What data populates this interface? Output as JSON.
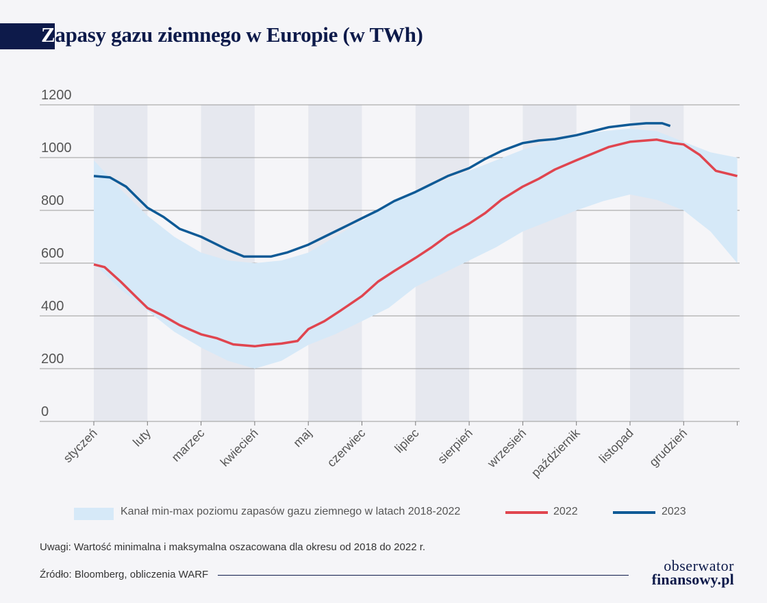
{
  "title_first_letter": "Z",
  "title_rest": "apasy gazu ziemnego w Europie (w TWh)",
  "note": "Uwagi: Wartość minimalna i maksymalna oszacowana dla okresu od 2018 do 2022 r.",
  "source": "Źródło: Bloomberg, obliczenia WARF",
  "logo": {
    "line1": "obserwator",
    "line2": "finansowy.pl"
  },
  "colors": {
    "band": "#d6e9f8",
    "s2022": "#e0454f",
    "s2023": "#0e5a96",
    "stripe": "#e6e8ef",
    "navy": "#0d1a4a"
  },
  "chart_data": {
    "type": "line",
    "title": "Zapasy gazu ziemnego w Europie (w TWh)",
    "ylim": [
      0,
      1200
    ],
    "yticks": [
      "0",
      "200",
      "400",
      "600",
      "800",
      "1000",
      "1200"
    ],
    "grid": true,
    "categories": [
      "styczeń",
      "luty",
      "marzec",
      "kwiecień",
      "maj",
      "czerwiec",
      "lipiec",
      "sierpień",
      "wrzesień",
      "październik",
      "listopad",
      "grudzień"
    ],
    "band": {
      "name": "Kanał min-max poziomu zapasów gazu ziemnego w latach 2018-2022",
      "x": [
        0,
        0.5,
        1,
        1.5,
        2,
        2.5,
        3,
        3.5,
        4,
        4.5,
        5,
        5.5,
        6,
        6.5,
        7,
        7.5,
        8,
        8.5,
        9,
        9.5,
        10,
        10.5,
        11,
        11.5,
        12
      ],
      "min": [
        600,
        500,
        420,
        340,
        280,
        230,
        200,
        230,
        290,
        330,
        380,
        430,
        510,
        560,
        610,
        660,
        720,
        760,
        800,
        835,
        860,
        840,
        800,
        720,
        600
      ],
      "max": [
        990,
        880,
        780,
        700,
        640,
        610,
        600,
        610,
        640,
        700,
        760,
        820,
        870,
        910,
        950,
        990,
        1030,
        1060,
        1080,
        1100,
        1110,
        1100,
        1060,
        1020,
        1000
      ]
    },
    "series": [
      {
        "name": "2022",
        "x": [
          0,
          0.2,
          0.5,
          0.8,
          1,
          1.3,
          1.6,
          2,
          2.3,
          2.6,
          3,
          3.2,
          3.5,
          3.8,
          4,
          4.3,
          4.6,
          5,
          5.3,
          5.6,
          6,
          6.3,
          6.6,
          7,
          7.3,
          7.6,
          8,
          8.3,
          8.6,
          9,
          9.3,
          9.6,
          10,
          10.3,
          10.5,
          10.8,
          11,
          11.3,
          11.6,
          12
        ],
        "values": [
          595,
          585,
          530,
          470,
          430,
          400,
          365,
          330,
          315,
          292,
          285,
          290,
          295,
          305,
          350,
          380,
          420,
          475,
          530,
          570,
          620,
          660,
          705,
          750,
          790,
          840,
          890,
          920,
          955,
          990,
          1015,
          1040,
          1060,
          1065,
          1068,
          1055,
          1050,
          1010,
          950,
          930
        ]
      },
      {
        "name": "2023",
        "x": [
          0,
          0.3,
          0.6,
          0.8,
          1,
          1.3,
          1.6,
          2,
          2.2,
          2.5,
          2.8,
          3,
          3.3,
          3.6,
          4,
          4.3,
          4.6,
          5,
          5.3,
          5.6,
          6,
          6.3,
          6.6,
          7,
          7.3,
          7.6,
          8,
          8.3,
          8.6,
          9,
          9.3,
          9.6,
          10,
          10.3,
          10.6,
          10.75
        ],
        "values": [
          930,
          925,
          890,
          850,
          810,
          775,
          730,
          700,
          680,
          650,
          625,
          625,
          625,
          640,
          670,
          700,
          730,
          770,
          800,
          835,
          870,
          900,
          930,
          960,
          995,
          1025,
          1055,
          1065,
          1070,
          1085,
          1100,
          1115,
          1125,
          1130,
          1130,
          1120
        ]
      }
    ],
    "legend": {
      "band": "Kanał min-max poziomu zapasów gazu ziemnego w latach 2018-2022",
      "s2022": "2022",
      "s2023": "2023"
    }
  }
}
